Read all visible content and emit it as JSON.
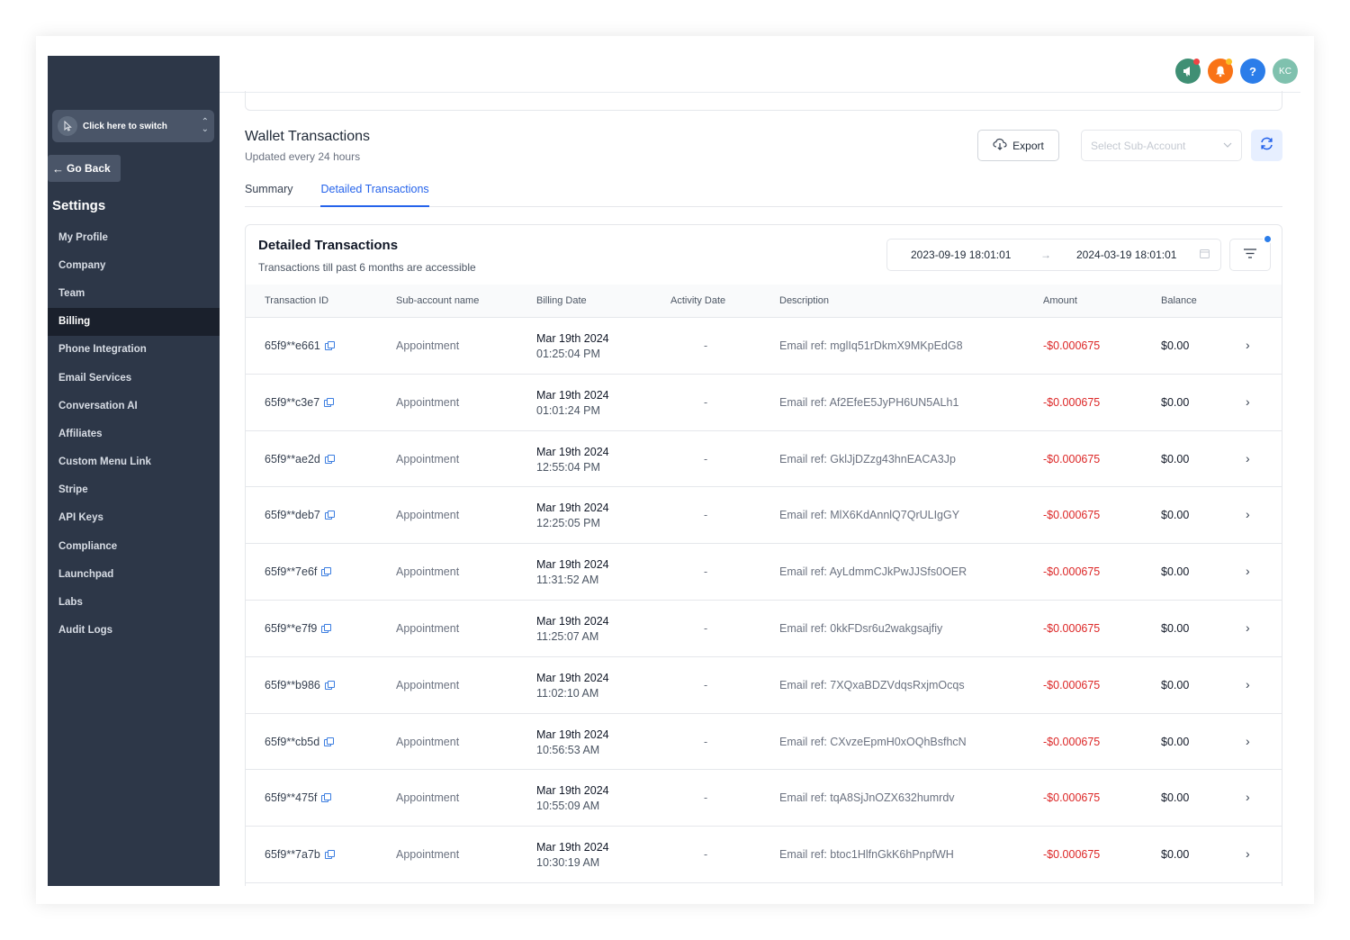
{
  "sidebar": {
    "switcher_label": "Click here to switch",
    "go_back": "Go Back",
    "settings_title": "Settings",
    "items": [
      {
        "label": "My Profile",
        "active": false
      },
      {
        "label": "Company",
        "active": false
      },
      {
        "label": "Team",
        "active": false
      },
      {
        "label": "Billing",
        "active": true
      },
      {
        "label": "Phone Integration",
        "active": false
      },
      {
        "label": "Email Services",
        "active": false
      },
      {
        "label": "Conversation AI",
        "active": false
      },
      {
        "label": "Affiliates",
        "active": false
      },
      {
        "label": "Custom Menu Link",
        "active": false
      },
      {
        "label": "Stripe",
        "active": false
      },
      {
        "label": "API Keys",
        "active": false
      },
      {
        "label": "Compliance",
        "active": false
      },
      {
        "label": "Launchpad",
        "active": false
      },
      {
        "label": "Labs",
        "active": false
      },
      {
        "label": "Audit Logs",
        "active": false
      }
    ]
  },
  "topbar": {
    "icons": [
      {
        "name": "megaphone-icon",
        "color": "#3f8f74",
        "badge": "#ef4444"
      },
      {
        "name": "bell-icon",
        "color": "#f97316",
        "badge": "#fbbf24"
      },
      {
        "name": "help-icon",
        "color": "#2b7de9",
        "glyph": "?"
      }
    ],
    "avatar_initials": "KC",
    "avatar_color": "#7fc1ae"
  },
  "wallet": {
    "title": "Wallet Transactions",
    "subtitle": "Updated every 24 hours",
    "export_label": "Export",
    "sub_account_placeholder": "Select Sub-Account"
  },
  "tabs": [
    {
      "label": "Summary",
      "active": false
    },
    {
      "label": "Detailed Transactions",
      "active": true
    }
  ],
  "detailed": {
    "title": "Detailed Transactions",
    "subtitle": "Transactions till past 6 months are accessible",
    "date_from": "2023-09-19 18:01:01",
    "date_to": "2024-03-19 18:01:01"
  },
  "table": {
    "columns": [
      "Transaction ID",
      "Sub-account name",
      "Billing Date",
      "Activity Date",
      "Description",
      "Amount",
      "Balance"
    ],
    "rows": [
      {
        "id": "65f9**e661",
        "sub": "Appointment",
        "date": "Mar 19th 2024",
        "time": "01:25:04 PM",
        "activity": "-",
        "desc": "Email ref: mglIq51rDkmX9MKpEdG8",
        "amount": "-$0.000675",
        "balance": "$0.00"
      },
      {
        "id": "65f9**c3e7",
        "sub": "Appointment",
        "date": "Mar 19th 2024",
        "time": "01:01:24 PM",
        "activity": "-",
        "desc": "Email ref: Af2EfeE5JyPH6UN5ALh1",
        "amount": "-$0.000675",
        "balance": "$0.00"
      },
      {
        "id": "65f9**ae2d",
        "sub": "Appointment",
        "date": "Mar 19th 2024",
        "time": "12:55:04 PM",
        "activity": "-",
        "desc": "Email ref: GklJjDZzg43hnEACA3Jp",
        "amount": "-$0.000675",
        "balance": "$0.00"
      },
      {
        "id": "65f9**deb7",
        "sub": "Appointment",
        "date": "Mar 19th 2024",
        "time": "12:25:05 PM",
        "activity": "-",
        "desc": "Email ref: MlX6KdAnnlQ7QrULIgGY",
        "amount": "-$0.000675",
        "balance": "$0.00"
      },
      {
        "id": "65f9**7e6f",
        "sub": "Appointment",
        "date": "Mar 19th 2024",
        "time": "11:31:52 AM",
        "activity": "-",
        "desc": "Email ref: AyLdmmCJkPwJJSfs0OER",
        "amount": "-$0.000675",
        "balance": "$0.00"
      },
      {
        "id": "65f9**e7f9",
        "sub": "Appointment",
        "date": "Mar 19th 2024",
        "time": "11:25:07 AM",
        "activity": "-",
        "desc": "Email ref: 0kkFDsr6u2wakgsajfiy",
        "amount": "-$0.000675",
        "balance": "$0.00"
      },
      {
        "id": "65f9**b986",
        "sub": "Appointment",
        "date": "Mar 19th 2024",
        "time": "11:02:10 AM",
        "activity": "-",
        "desc": "Email ref: 7XQxaBDZVdqsRxjmOcqs",
        "amount": "-$0.000675",
        "balance": "$0.00"
      },
      {
        "id": "65f9**cb5d",
        "sub": "Appointment",
        "date": "Mar 19th 2024",
        "time": "10:56:53 AM",
        "activity": "-",
        "desc": "Email ref: CXvzeEpmH0xOQhBsfhcN",
        "amount": "-$0.000675",
        "balance": "$0.00"
      },
      {
        "id": "65f9**475f",
        "sub": "Appointment",
        "date": "Mar 19th 2024",
        "time": "10:55:09 AM",
        "activity": "-",
        "desc": "Email ref: tqA8SjJnOZX632humrdv",
        "amount": "-$0.000675",
        "balance": "$0.00"
      },
      {
        "id": "65f9**7a7b",
        "sub": "Appointment",
        "date": "Mar 19th 2024",
        "time": "10:30:19 AM",
        "activity": "-",
        "desc": "Email ref: btoc1HlfnGkK6hPnpfWH",
        "amount": "-$0.000675",
        "balance": "$0.00"
      }
    ]
  }
}
